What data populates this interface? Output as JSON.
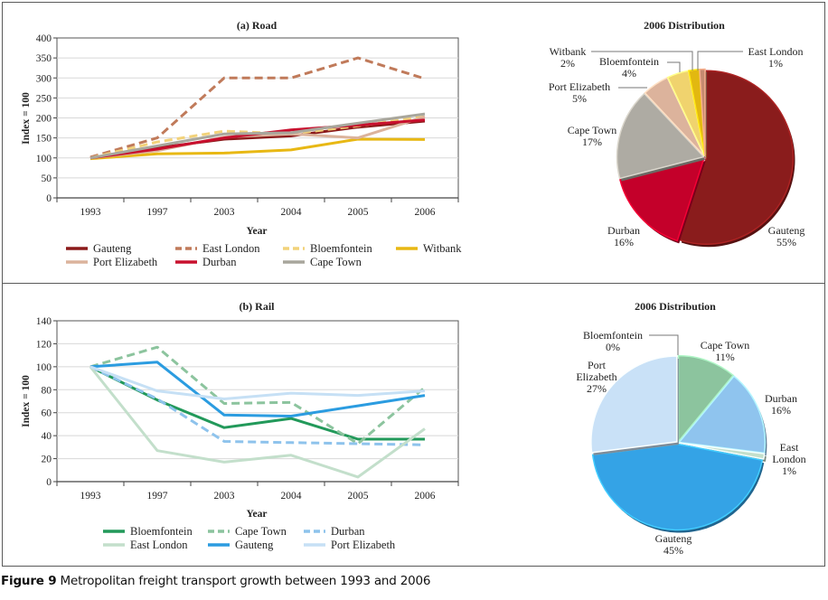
{
  "caption": {
    "label": "Figure 9",
    "text": " Metropolitan freight transport growth between 1993 and 2006"
  },
  "chart_data": [
    {
      "type": "line",
      "id": "road",
      "title": "(a) Road",
      "xlabel": "Year",
      "ylabel": "Index = 100",
      "categories": [
        "1993",
        "1997",
        "2003",
        "2004",
        "2005",
        "2006"
      ],
      "ylim": [
        0,
        400
      ],
      "yticks": [
        0,
        50,
        100,
        150,
        200,
        250,
        300,
        350,
        400
      ],
      "grid": true,
      "legend": "bottom",
      "series": [
        {
          "name": "Gauteng",
          "color": "#8b1a1a",
          "dashed": false,
          "values": [
            100,
            125,
            147,
            155,
            177,
            192
          ]
        },
        {
          "name": "East London",
          "color": "#c07a5a",
          "dashed": true,
          "values": [
            102,
            150,
            300,
            300,
            350,
            298
          ]
        },
        {
          "name": "Bloemfontein",
          "color": "#f2d27a",
          "dashed": true,
          "values": [
            100,
            140,
            167,
            160,
            180,
            203
          ]
        },
        {
          "name": "Witbank",
          "color": "#e8b814",
          "dashed": false,
          "values": [
            98,
            110,
            112,
            120,
            147,
            146
          ]
        },
        {
          "name": "Port Elizabeth",
          "color": "#dcb39c",
          "dashed": false,
          "values": [
            100,
            118,
            152,
            160,
            150,
            203
          ]
        },
        {
          "name": "Durban",
          "color": "#c8102e",
          "dashed": false,
          "values": [
            100,
            122,
            150,
            170,
            182,
            195
          ]
        },
        {
          "name": "Cape Town",
          "color": "#a8a69c",
          "dashed": false,
          "values": [
            100,
            130,
            160,
            163,
            187,
            210
          ]
        }
      ]
    },
    {
      "type": "pie",
      "id": "road-pie",
      "title": "2006 Distribution",
      "slices": [
        {
          "name": "Gauteng",
          "value": 55,
          "label": "55%",
          "color": "#8a1c1c"
        },
        {
          "name": "Durban",
          "value": 16,
          "label": "16%",
          "color": "#c4002a"
        },
        {
          "name": "Cape Town",
          "value": 17,
          "label": "17%",
          "color": "#aeaba3"
        },
        {
          "name": "Port Elizabeth",
          "value": 5,
          "label": "5%",
          "color": "#dcb39c"
        },
        {
          "name": "Bloemfontein",
          "value": 4,
          "label": "4%",
          "color": "#f0d36e"
        },
        {
          "name": "Witbank",
          "value": 2,
          "label": "2%",
          "color": "#e2b810"
        },
        {
          "name": "East London",
          "value": 1,
          "label": "1%",
          "color": "#c58a70"
        }
      ]
    },
    {
      "type": "line",
      "id": "rail",
      "title": "(b) Rail",
      "xlabel": "Year",
      "ylabel": "Index = 100",
      "categories": [
        "1993",
        "1997",
        "2003",
        "2004",
        "2005",
        "2006"
      ],
      "ylim": [
        0,
        140
      ],
      "yticks": [
        0,
        20,
        40,
        60,
        80,
        100,
        120,
        140
      ],
      "grid": true,
      "legend": "bottom",
      "series": [
        {
          "name": "Bloemfontein",
          "color": "#22995a",
          "dashed": false,
          "values": [
            100,
            71,
            47,
            55,
            37,
            37
          ]
        },
        {
          "name": "Cape Town",
          "color": "#8cc49e",
          "dashed": true,
          "values": [
            100,
            117,
            68,
            69,
            33,
            82
          ]
        },
        {
          "name": "Durban",
          "color": "#8ec3ec",
          "dashed": true,
          "values": [
            100,
            72,
            35,
            34,
            33,
            32
          ]
        },
        {
          "name": "East London",
          "color": "#c3dfcb",
          "dashed": false,
          "values": [
            100,
            27,
            17,
            23,
            4,
            46
          ]
        },
        {
          "name": "Gauteng",
          "color": "#2b9ce0",
          "dashed": false,
          "values": [
            100,
            104,
            58,
            57,
            66,
            75
          ]
        },
        {
          "name": "Port Elizabeth",
          "color": "#c6e0f5",
          "dashed": false,
          "values": [
            100,
            79,
            72,
            77,
            75,
            79
          ]
        }
      ]
    },
    {
      "type": "pie",
      "id": "rail-pie",
      "title": "2006 Distribution",
      "slices": [
        {
          "name": "Bloemfontein",
          "value": 0,
          "label": "0%",
          "color": "#9aa4ad"
        },
        {
          "name": "Cape Town",
          "value": 11,
          "label": "11%",
          "color": "#8cc49e"
        },
        {
          "name": "Durban",
          "value": 16,
          "label": "16%",
          "color": "#8fc4ee"
        },
        {
          "name": "East London",
          "value": 1,
          "label": "1%",
          "color": "#c3dfcb"
        },
        {
          "name": "Gauteng",
          "value": 45,
          "label": "45%",
          "color": "#34a3e6"
        },
        {
          "name": "Port Elizabeth",
          "value": 27,
          "label": "27%",
          "color": "#c9e1f7"
        }
      ]
    }
  ]
}
